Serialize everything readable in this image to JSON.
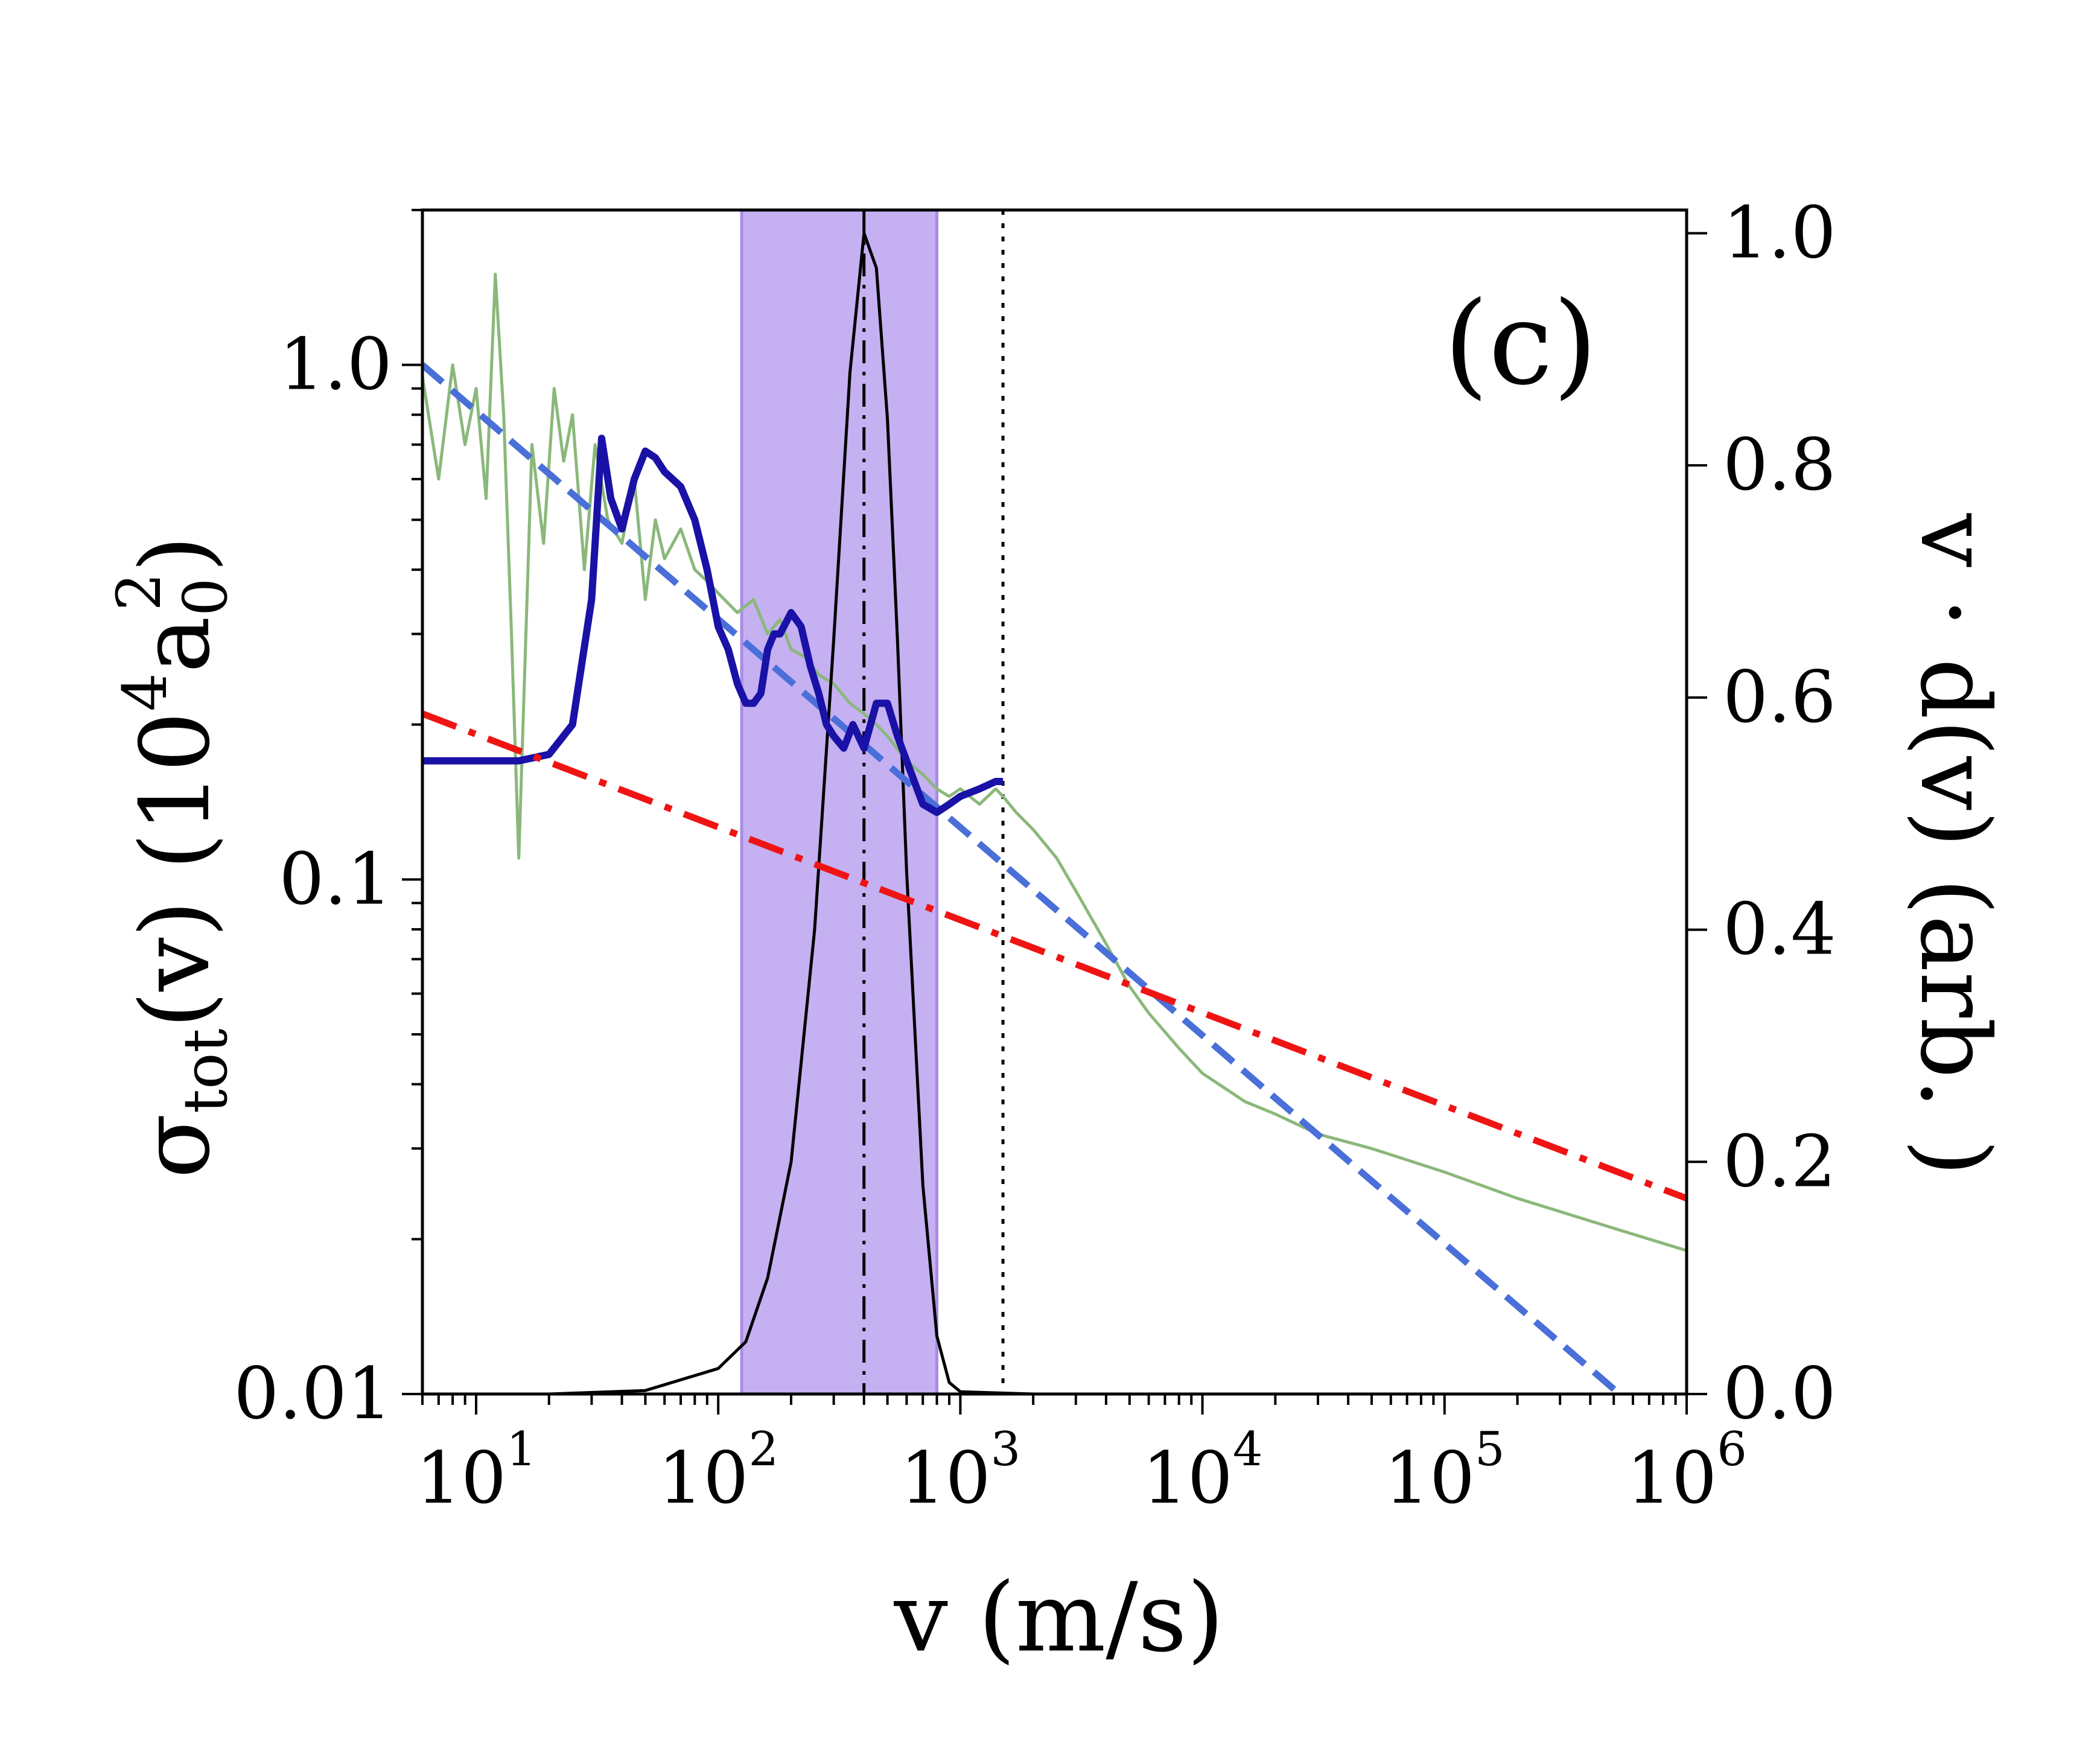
{
  "chart_data": {
    "type": "line",
    "panel_label": "(c)",
    "xlabel": "v (m/s)",
    "ylabel_left": {
      "base": "σ",
      "sub": "tot",
      "rest": "(v) (10",
      "sup": "4",
      "unit": "a",
      "unit_sub": "0",
      "unit_sup": "2",
      "close": ")"
    },
    "ylabel_right": "v · d(v) (arb. )",
    "x_scale": "log",
    "y_left_scale": "log",
    "xlim": [
      6,
      1000000
    ],
    "ylim_left": [
      0.01,
      2.0
    ],
    "ylim_right": [
      0.0,
      1.02
    ],
    "x_ticks": [
      {
        "value": 10,
        "base": "10",
        "exp": "1"
      },
      {
        "value": 100,
        "base": "10",
        "exp": "2"
      },
      {
        "value": 1000,
        "base": "10",
        "exp": "3"
      },
      {
        "value": 10000,
        "base": "10",
        "exp": "4"
      },
      {
        "value": 100000,
        "base": "10",
        "exp": "5"
      },
      {
        "value": 1000000,
        "base": "10",
        "exp": "6"
      }
    ],
    "y_left_ticks": [
      {
        "value": 1.0,
        "label": "1.0"
      },
      {
        "value": 0.1,
        "label": "0.1"
      },
      {
        "value": 0.01,
        "label": "0.01"
      }
    ],
    "y_right_ticks": [
      {
        "value": 1.0,
        "label": "1.0"
      },
      {
        "value": 0.8,
        "label": "0.8"
      },
      {
        "value": 0.6,
        "label": "0.6"
      },
      {
        "value": 0.4,
        "label": "0.4"
      },
      {
        "value": 0.2,
        "label": "0.2"
      },
      {
        "value": 0.0,
        "label": "0.0"
      }
    ],
    "shaded_band": {
      "x_range": [
        125,
        800
      ],
      "color": "#c5b0f2",
      "edge": "#a98be6"
    },
    "vlines": [
      {
        "x": 400,
        "style": "dashdot",
        "color": "#000000"
      },
      {
        "x": 1500,
        "style": "dotted",
        "color": "#000000"
      }
    ],
    "series": [
      {
        "axis": "left",
        "style": "thin",
        "color": "#8ab87a",
        "x": [
          6,
          7,
          8,
          9,
          10,
          11,
          12,
          13,
          14,
          15,
          17,
          19,
          21,
          23,
          25,
          28,
          31,
          35,
          40,
          45,
          50,
          55,
          60,
          70,
          80,
          90,
          100,
          120,
          140,
          160,
          180,
          200,
          230,
          260,
          300,
          350,
          400,
          450,
          500,
          600,
          700,
          800,
          900,
          1000,
          1200,
          1400,
          1500,
          1700,
          2000,
          2500,
          3000,
          4000,
          5000,
          6000,
          8000,
          10000,
          15000,
          20000,
          30000,
          50000,
          100000,
          200000,
          500000,
          1000000
        ],
        "y": [
          0.95,
          0.6,
          1.0,
          0.7,
          0.9,
          0.55,
          1.5,
          0.8,
          0.3,
          0.11,
          0.7,
          0.45,
          0.9,
          0.65,
          0.8,
          0.4,
          0.7,
          0.5,
          0.45,
          0.6,
          0.35,
          0.5,
          0.42,
          0.48,
          0.4,
          0.38,
          0.36,
          0.33,
          0.35,
          0.3,
          0.32,
          0.28,
          0.27,
          0.25,
          0.24,
          0.22,
          0.21,
          0.2,
          0.19,
          0.17,
          0.16,
          0.15,
          0.145,
          0.15,
          0.14,
          0.15,
          0.145,
          0.135,
          0.125,
          0.11,
          0.095,
          0.075,
          0.062,
          0.055,
          0.047,
          0.042,
          0.037,
          0.035,
          0.032,
          0.03,
          0.027,
          0.024,
          0.021,
          0.019
        ]
      },
      {
        "axis": "left",
        "style": "thick",
        "color": "#1a11a6",
        "x": [
          6,
          8,
          10,
          15,
          20,
          25,
          30,
          33,
          36,
          40,
          45,
          50,
          55,
          60,
          70,
          80,
          90,
          100,
          110,
          120,
          130,
          140,
          150,
          160,
          170,
          180,
          200,
          220,
          240,
          260,
          280,
          300,
          330,
          360,
          400,
          450,
          500,
          550,
          600,
          700,
          800,
          900,
          1000,
          1200,
          1400,
          1500
        ],
        "y": [
          0.17,
          0.17,
          0.17,
          0.17,
          0.175,
          0.2,
          0.35,
          0.72,
          0.55,
          0.48,
          0.6,
          0.68,
          0.66,
          0.62,
          0.58,
          0.5,
          0.4,
          0.31,
          0.28,
          0.24,
          0.22,
          0.22,
          0.23,
          0.28,
          0.3,
          0.3,
          0.33,
          0.31,
          0.26,
          0.23,
          0.2,
          0.19,
          0.18,
          0.2,
          0.18,
          0.22,
          0.22,
          0.19,
          0.17,
          0.14,
          0.135,
          0.14,
          0.145,
          0.15,
          0.155,
          0.155
        ]
      },
      {
        "axis": "left",
        "style": "dashed",
        "color": "#4a6fd8",
        "x": [
          6,
          600000
        ],
        "y": [
          1.0,
          0.0095
        ]
      },
      {
        "axis": "left",
        "style": "dashdot",
        "color": "#ef1414",
        "x": [
          6,
          1000000
        ],
        "y": [
          0.21,
          0.024
        ]
      },
      {
        "axis": "right",
        "style": "thin",
        "color": "#000000",
        "x": [
          6,
          20,
          50,
          100,
          130,
          160,
          200,
          250,
          300,
          350,
          400,
          450,
          500,
          550,
          600,
          700,
          800,
          900,
          1000,
          2000,
          10000,
          1000000
        ],
        "y": [
          0.0,
          0.0,
          0.003,
          0.022,
          0.045,
          0.1,
          0.2,
          0.4,
          0.65,
          0.88,
          1.0,
          0.97,
          0.84,
          0.65,
          0.45,
          0.18,
          0.05,
          0.01,
          0.002,
          0.0,
          0.0,
          0.0
        ]
      }
    ]
  }
}
